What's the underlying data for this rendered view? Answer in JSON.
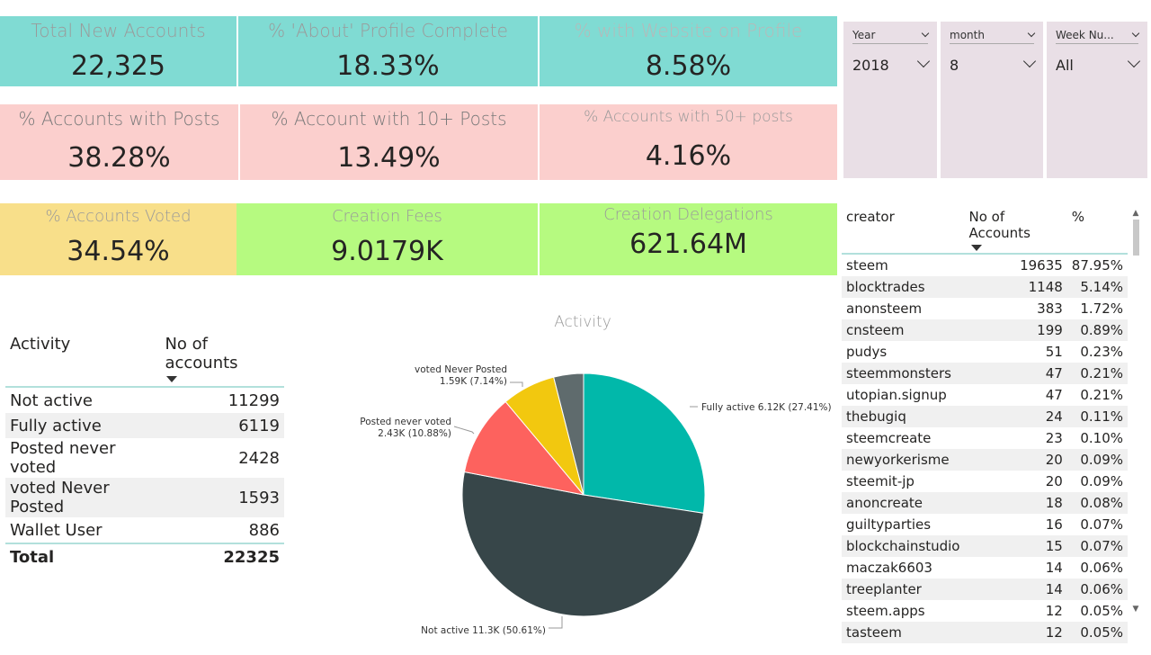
{
  "cards": {
    "total_new_accounts": {
      "label": "Total New Accounts",
      "value": "22,325"
    },
    "about_complete": {
      "label": "% 'About' Profile Complete",
      "value": "18.33%"
    },
    "website": {
      "label": "% with Website on Profile",
      "value": "8.58%"
    },
    "with_posts": {
      "label": "%  Accounts with Posts",
      "value": "38.28%"
    },
    "posts10": {
      "label": "% Account with 10+ Posts",
      "value": "13.49%"
    },
    "posts50": {
      "label": "% Accounts with 50+ posts",
      "value": "4.16%"
    },
    "voted": {
      "label": "% Accounts Voted",
      "value": "34.54%"
    },
    "fees": {
      "label": "Creation Fees",
      "value": "9.0179K"
    },
    "delegations": {
      "label": "Creation Delegations",
      "value": "621.64M"
    }
  },
  "slicers": [
    {
      "title": "Year",
      "value": "2018"
    },
    {
      "title": "month",
      "value": "8"
    },
    {
      "title": "Week Nu...",
      "value": "All"
    }
  ],
  "activity_table": {
    "headers": [
      "Activity",
      "No of accounts"
    ],
    "rows": [
      {
        "name": "Not active",
        "count": "11299"
      },
      {
        "name": "Fully active",
        "count": "6119"
      },
      {
        "name": "Posted never voted",
        "count": "2428"
      },
      {
        "name": "voted Never Posted",
        "count": "1593"
      },
      {
        "name": "Wallet User",
        "count": "886"
      }
    ],
    "total_label": "Total",
    "total_value": "22325"
  },
  "pie": {
    "title": "Activity",
    "labels": {
      "fully": "Fully active 6.12K (27.41%)",
      "posted1": "Posted never voted",
      "posted2": "2.43K (10.88%)",
      "voted1": "voted Never Posted",
      "voted2": "1.59K (7.14%)",
      "notactive": "Not active 11.3K (50.61%)"
    }
  },
  "chart_data": {
    "type": "pie",
    "title": "Activity",
    "categories": [
      "Fully active",
      "Not active",
      "Posted never voted",
      "voted Never Posted",
      "Wallet User"
    ],
    "values": [
      6119,
      11299,
      2428,
      1593,
      886
    ],
    "colors": [
      "#01b8aa",
      "#374649",
      "#fd625e",
      "#f2c80f",
      "#5f6b6d"
    ]
  },
  "creator_table": {
    "headers": [
      "creator",
      "No of Accounts",
      "%"
    ],
    "rows": [
      {
        "name": "steem",
        "count": "19635",
        "pct": "87.95%"
      },
      {
        "name": "blocktrades",
        "count": "1148",
        "pct": "5.14%"
      },
      {
        "name": "anonsteem",
        "count": "383",
        "pct": "1.72%"
      },
      {
        "name": "cnsteem",
        "count": "199",
        "pct": "0.89%"
      },
      {
        "name": "pudys",
        "count": "51",
        "pct": "0.23%"
      },
      {
        "name": "steemmonsters",
        "count": "47",
        "pct": "0.21%"
      },
      {
        "name": "utopian.signup",
        "count": "47",
        "pct": "0.21%"
      },
      {
        "name": "thebugiq",
        "count": "24",
        "pct": "0.11%"
      },
      {
        "name": "steemcreate",
        "count": "23",
        "pct": "0.10%"
      },
      {
        "name": "newyorkerisme",
        "count": "20",
        "pct": "0.09%"
      },
      {
        "name": "steemit-jp",
        "count": "20",
        "pct": "0.09%"
      },
      {
        "name": "anoncreate",
        "count": "18",
        "pct": "0.08%"
      },
      {
        "name": "guiltyparties",
        "count": "16",
        "pct": "0.07%"
      },
      {
        "name": "blockchainstudio",
        "count": "15",
        "pct": "0.07%"
      },
      {
        "name": "maczak6603",
        "count": "14",
        "pct": "0.06%"
      },
      {
        "name": "treeplanter",
        "count": "14",
        "pct": "0.06%"
      },
      {
        "name": "steem.apps",
        "count": "12",
        "pct": "0.05%"
      },
      {
        "name": "tasteem",
        "count": "12",
        "pct": "0.05%"
      }
    ]
  }
}
